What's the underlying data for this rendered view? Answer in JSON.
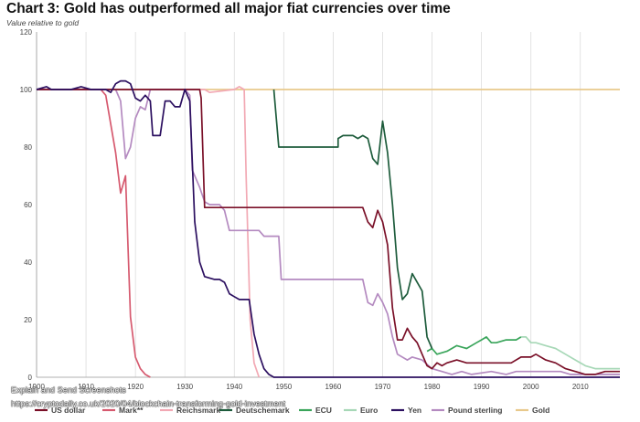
{
  "title": "Chart 3: Gold has outperformed all major fiat currencies over time",
  "subtitle": "Value relative to gold",
  "watermark": {
    "line1": "Explain and Send Screenshots",
    "line2": "https://cryptodaily.co.uk/2020/04/blockchain-transforming-gold-investment"
  },
  "chart_data": {
    "type": "line",
    "xlim": [
      1900,
      2018
    ],
    "ylim": [
      0,
      120
    ],
    "x_ticks": [
      1900,
      1910,
      1920,
      1930,
      1940,
      1950,
      1960,
      1970,
      1980,
      1990,
      2000,
      2010
    ],
    "x_tick_labels": [
      "1900",
      "1910",
      "1920",
      "1930",
      "1940",
      "1950",
      "1960",
      "1970",
      "1980",
      "1990",
      "2000",
      "2010"
    ],
    "y_ticks": [
      0,
      20,
      40,
      60,
      80,
      100,
      120
    ],
    "y_tick_labels": [
      "0",
      "20",
      "40",
      "60",
      "80",
      "100",
      "120"
    ],
    "grid": "vertical",
    "legend_position": "bottom",
    "series": [
      {
        "name": "Gold",
        "color": "#e8c98c",
        "points": [
          [
            1900,
            100
          ],
          [
            2018,
            100
          ]
        ]
      },
      {
        "name": "Mark**",
        "color": "#d65a6f",
        "points": [
          [
            1900,
            100
          ],
          [
            1913,
            100
          ],
          [
            1914,
            98
          ],
          [
            1915,
            88
          ],
          [
            1916,
            78
          ],
          [
            1917,
            64
          ],
          [
            1918,
            70
          ],
          [
            1919,
            21
          ],
          [
            1920,
            7
          ],
          [
            1921,
            3
          ],
          [
            1922,
            1
          ],
          [
            1923,
            0
          ]
        ]
      },
      {
        "name": "Reichsmark",
        "color": "#f2a9b4",
        "points": [
          [
            1924,
            100
          ],
          [
            1934,
            100
          ],
          [
            1935,
            99
          ],
          [
            1940,
            100
          ],
          [
            1941,
            101
          ],
          [
            1942,
            100
          ],
          [
            1942.4,
            70
          ],
          [
            1943.2,
            20
          ],
          [
            1944,
            5
          ],
          [
            1945,
            0
          ]
        ]
      },
      {
        "name": "ECU",
        "color": "#3aa55b",
        "points": [
          [
            1979,
            9
          ],
          [
            1980,
            10
          ],
          [
            1981,
            8
          ],
          [
            1983,
            9
          ],
          [
            1985,
            11
          ],
          [
            1987,
            10
          ],
          [
            1989,
            12
          ],
          [
            1990,
            13
          ],
          [
            1991,
            14
          ],
          [
            1992,
            12
          ],
          [
            1993,
            12
          ],
          [
            1995,
            13
          ],
          [
            1997,
            13
          ],
          [
            1998,
            14
          ]
        ]
      },
      {
        "name": "Euro",
        "color": "#a7d8b7",
        "points": [
          [
            1998,
            14
          ],
          [
            1999,
            14
          ],
          [
            2000,
            12
          ],
          [
            2001,
            12
          ],
          [
            2003,
            11
          ],
          [
            2005,
            10
          ],
          [
            2007,
            8
          ],
          [
            2009,
            6
          ],
          [
            2011,
            4
          ],
          [
            2013,
            3
          ],
          [
            2015,
            3
          ],
          [
            2018,
            3
          ]
        ]
      },
      {
        "name": "Deutschemark",
        "color": "#1e5c3c",
        "points": [
          [
            1948,
            100
          ],
          [
            1949,
            80
          ],
          [
            1960,
            80
          ],
          [
            1961,
            80
          ],
          [
            1961,
            83
          ],
          [
            1962,
            84
          ],
          [
            1964,
            84
          ],
          [
            1965,
            83
          ],
          [
            1966,
            84
          ],
          [
            1967,
            83
          ],
          [
            1968,
            76
          ],
          [
            1969,
            74
          ],
          [
            1970,
            89
          ],
          [
            1971,
            78
          ],
          [
            1972,
            60
          ],
          [
            1973,
            38
          ],
          [
            1974,
            27
          ],
          [
            1975,
            29
          ],
          [
            1976,
            36
          ],
          [
            1977,
            33
          ],
          [
            1978,
            30
          ],
          [
            1979,
            14
          ],
          [
            1980,
            10
          ]
        ]
      },
      {
        "name": "Pound sterling",
        "color": "#b48ac0",
        "points": [
          [
            1900,
            100
          ],
          [
            1914,
            100
          ],
          [
            1916,
            100
          ],
          [
            1917,
            96
          ],
          [
            1918,
            76
          ],
          [
            1919,
            80
          ],
          [
            1920,
            90
          ],
          [
            1921,
            94
          ],
          [
            1922,
            93
          ],
          [
            1923,
            100
          ],
          [
            1930,
            100
          ],
          [
            1931,
            98
          ],
          [
            1931.5,
            72
          ],
          [
            1933,
            66
          ],
          [
            1934,
            61
          ],
          [
            1935,
            60
          ],
          [
            1937,
            60
          ],
          [
            1938,
            58
          ],
          [
            1939,
            51
          ],
          [
            1945,
            51
          ],
          [
            1946,
            49
          ],
          [
            1949,
            49
          ],
          [
            1949.5,
            34
          ],
          [
            1966,
            34
          ],
          [
            1967,
            26
          ],
          [
            1968,
            25
          ],
          [
            1969,
            29
          ],
          [
            1970,
            26
          ],
          [
            1971,
            22
          ],
          [
            1972,
            14
          ],
          [
            1973,
            8
          ],
          [
            1975,
            6
          ],
          [
            1976,
            7
          ],
          [
            1978,
            6
          ],
          [
            1980,
            3
          ],
          [
            1982,
            2
          ],
          [
            1984,
            1
          ],
          [
            1986,
            2
          ],
          [
            1988,
            1
          ],
          [
            1992,
            2
          ],
          [
            1995,
            1
          ],
          [
            1997,
            2
          ],
          [
            2000,
            2
          ],
          [
            2003,
            2
          ],
          [
            2006,
            2
          ],
          [
            2008,
            1
          ],
          [
            2010,
            1
          ],
          [
            2018,
            1
          ]
        ]
      },
      {
        "name": "US dollar",
        "color": "#7a1028",
        "points": [
          [
            1900,
            100
          ],
          [
            1933,
            100
          ],
          [
            1933.3,
            97
          ],
          [
            1934,
            59
          ],
          [
            1945,
            59
          ],
          [
            1960,
            59
          ],
          [
            1965,
            59
          ],
          [
            1966,
            59
          ],
          [
            1967,
            54
          ],
          [
            1968,
            52
          ],
          [
            1969,
            58
          ],
          [
            1970,
            54
          ],
          [
            1971,
            46
          ],
          [
            1972,
            24
          ],
          [
            1973,
            13
          ],
          [
            1974,
            13
          ],
          [
            1975,
            17
          ],
          [
            1976,
            14
          ],
          [
            1977,
            12
          ],
          [
            1978,
            8
          ],
          [
            1979,
            4
          ],
          [
            1980,
            3
          ],
          [
            1981,
            5
          ],
          [
            1982,
            4
          ],
          [
            1983,
            5
          ],
          [
            1985,
            6
          ],
          [
            1987,
            5
          ],
          [
            1990,
            5
          ],
          [
            1993,
            5
          ],
          [
            1996,
            5
          ],
          [
            1998,
            7
          ],
          [
            2000,
            7
          ],
          [
            2001,
            8
          ],
          [
            2003,
            6
          ],
          [
            2005,
            5
          ],
          [
            2007,
            3
          ],
          [
            2009,
            2
          ],
          [
            2011,
            1
          ],
          [
            2013,
            1
          ],
          [
            2015,
            2
          ],
          [
            2018,
            2
          ]
        ]
      },
      {
        "name": "Yen",
        "color": "#2c1060",
        "points": [
          [
            1900,
            100
          ],
          [
            1902,
            101
          ],
          [
            1903,
            100
          ],
          [
            1905,
            100
          ],
          [
            1907,
            100
          ],
          [
            1909,
            101
          ],
          [
            1911,
            100
          ],
          [
            1913,
            100
          ],
          [
            1914,
            100
          ],
          [
            1915,
            99
          ],
          [
            1916,
            102
          ],
          [
            1917,
            103
          ],
          [
            1918,
            103
          ],
          [
            1919,
            102
          ],
          [
            1920,
            97
          ],
          [
            1921,
            96
          ],
          [
            1922,
            98
          ],
          [
            1923,
            96
          ],
          [
            1923.5,
            84
          ],
          [
            1925,
            84
          ],
          [
            1926,
            96
          ],
          [
            1927,
            96
          ],
          [
            1928,
            94
          ],
          [
            1929,
            94
          ],
          [
            1930,
            100
          ],
          [
            1931,
            96
          ],
          [
            1932,
            54
          ],
          [
            1933,
            40
          ],
          [
            1934,
            35
          ],
          [
            1936,
            34
          ],
          [
            1937,
            34
          ],
          [
            1938,
            33
          ],
          [
            1939,
            29
          ],
          [
            1940,
            28
          ],
          [
            1941,
            27
          ],
          [
            1943,
            27
          ],
          [
            1944,
            15
          ],
          [
            1945,
            8
          ],
          [
            1946,
            3
          ],
          [
            1947,
            1
          ],
          [
            1948,
            0
          ],
          [
            1960,
            0
          ],
          [
            1970,
            0
          ],
          [
            2018,
            0
          ]
        ]
      }
    ]
  }
}
